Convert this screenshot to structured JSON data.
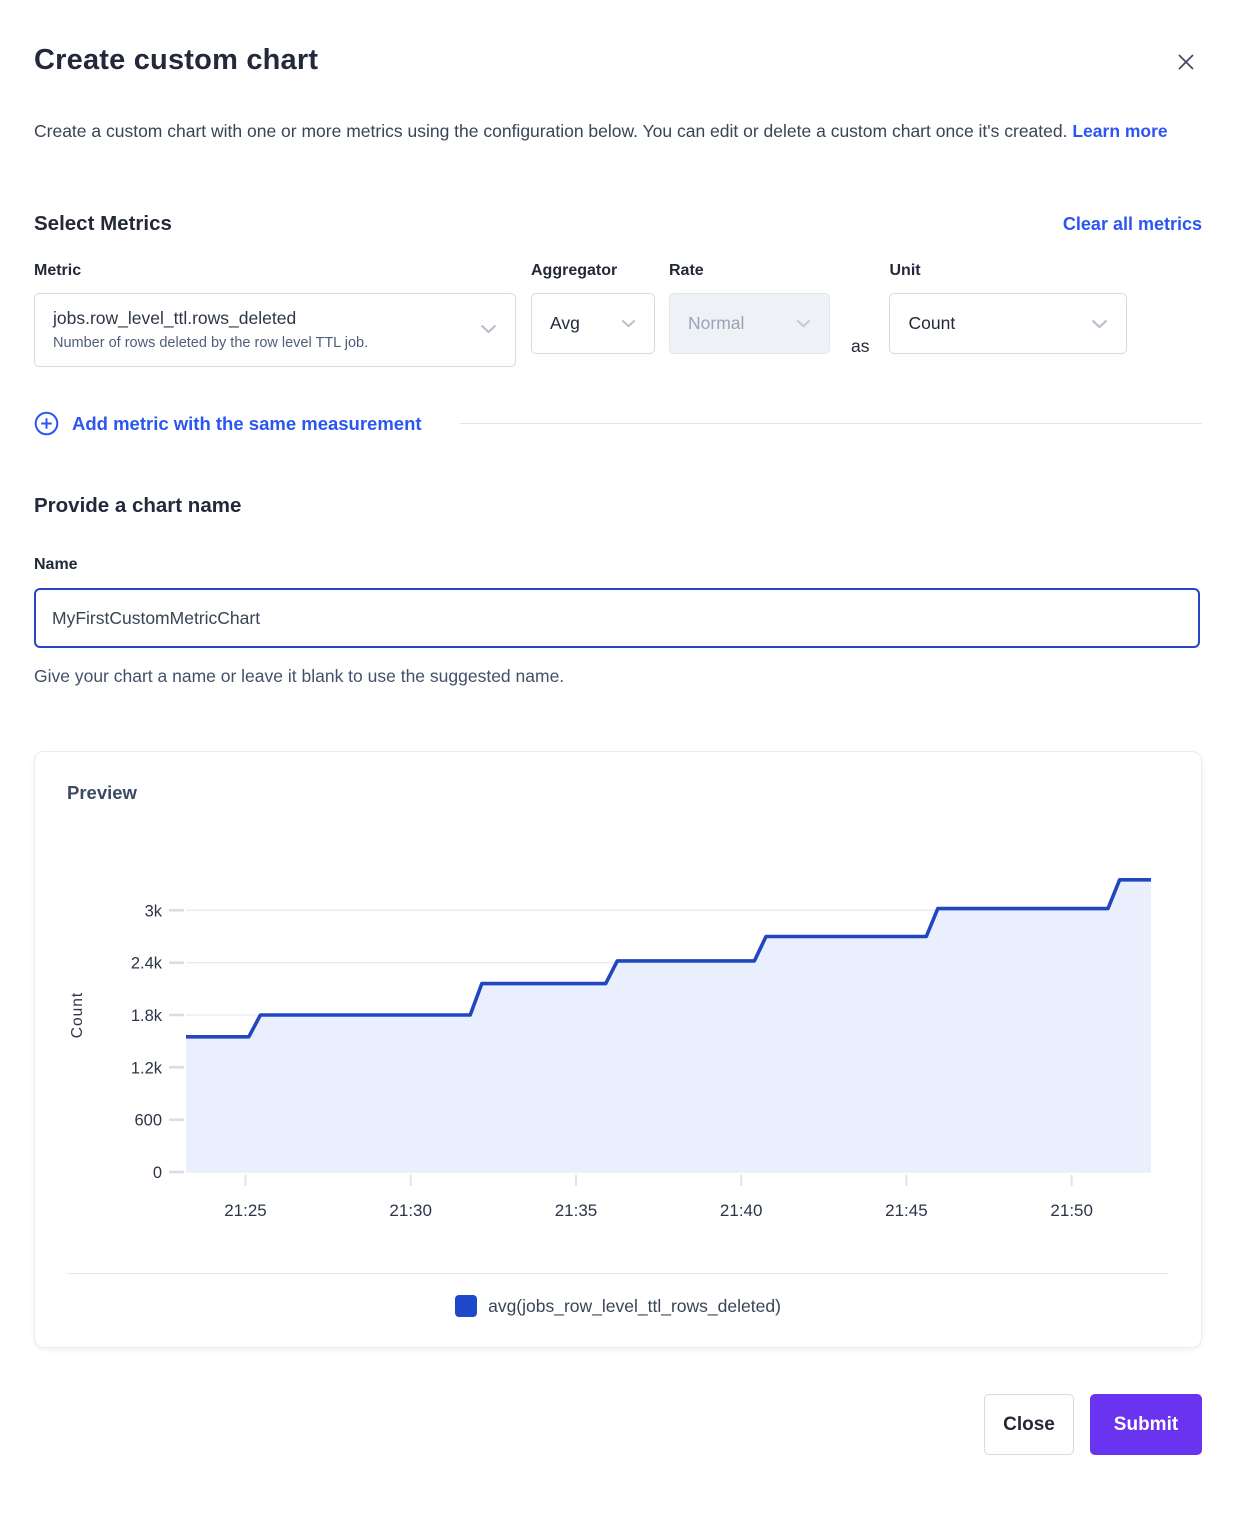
{
  "modal": {
    "title": "Create custom chart",
    "description": "Create a custom chart with one or more metrics using the configuration below. You can edit or delete a custom chart once it's created.",
    "learn_more_label": "Learn more"
  },
  "metrics_section": {
    "heading": "Select Metrics",
    "clear_all_label": "Clear all metrics",
    "metric": {
      "label": "Metric",
      "value": "jobs.row_level_ttl.rows_deleted",
      "description": "Number of rows deleted by the row level TTL job."
    },
    "aggregator": {
      "label": "Aggregator",
      "value": "Avg"
    },
    "rate": {
      "label": "Rate",
      "value": "Normal",
      "state": "disabled"
    },
    "as_label": "as",
    "unit": {
      "label": "Unit",
      "value": "Count"
    },
    "add_metric_label": "Add metric with the same measurement"
  },
  "name_section": {
    "heading": "Provide a chart name",
    "label": "Name",
    "value": "MyFirstCustomMetricChart",
    "helper": "Give your chart a name or leave it blank to use the suggested name."
  },
  "preview": {
    "heading": "Preview",
    "legend": [
      {
        "label": "avg(jobs_row_level_ttl_rows_deleted)",
        "color": "#1e49c9"
      }
    ]
  },
  "chart_data": {
    "type": "area",
    "title": "Preview",
    "ylabel": "Count",
    "xlabel": "",
    "x_note": "x values are minutes after 21:00",
    "x_range": [
      23.2,
      52.4
    ],
    "y_range": [
      0,
      3600
    ],
    "grid": "horizontal",
    "legend_position": "bottom-center",
    "x_ticks": [
      {
        "t": 25,
        "label": "21:25"
      },
      {
        "t": 30,
        "label": "21:30"
      },
      {
        "t": 35,
        "label": "21:35"
      },
      {
        "t": 40,
        "label": "21:40"
      },
      {
        "t": 45,
        "label": "21:45"
      },
      {
        "t": 50,
        "label": "21:50"
      }
    ],
    "y_ticks": [
      {
        "v": 0,
        "label": "0"
      },
      {
        "v": 600,
        "label": "600"
      },
      {
        "v": 1200,
        "label": "1.2k"
      },
      {
        "v": 1800,
        "label": "1.8k"
      },
      {
        "v": 2400,
        "label": "2.4k"
      },
      {
        "v": 3000,
        "label": "3k"
      }
    ],
    "series": [
      {
        "name": "avg(jobs_row_level_ttl_rows_deleted)",
        "line_color": "#2146c0",
        "fill_color": "#e9effc",
        "points": [
          [
            23.2,
            1550
          ],
          [
            25.1,
            1550
          ],
          [
            25.45,
            1800
          ],
          [
            31.8,
            1800
          ],
          [
            32.15,
            2160
          ],
          [
            35.9,
            2160
          ],
          [
            36.25,
            2420
          ],
          [
            40.4,
            2420
          ],
          [
            40.75,
            2700
          ],
          [
            45.6,
            2700
          ],
          [
            45.95,
            3020
          ],
          [
            51.1,
            3020
          ],
          [
            51.45,
            3350
          ],
          [
            52.4,
            3350
          ]
        ]
      }
    ]
  },
  "footer": {
    "close_label": "Close",
    "submit_label": "Submit"
  },
  "colors": {
    "link_blue": "#2b57f0",
    "submit_purple": "#6933f0",
    "chart_line": "#2146c0",
    "chart_fill": "#e9effc",
    "heading_dark": "#23293a",
    "focused_input_border": "#2b44c5"
  }
}
